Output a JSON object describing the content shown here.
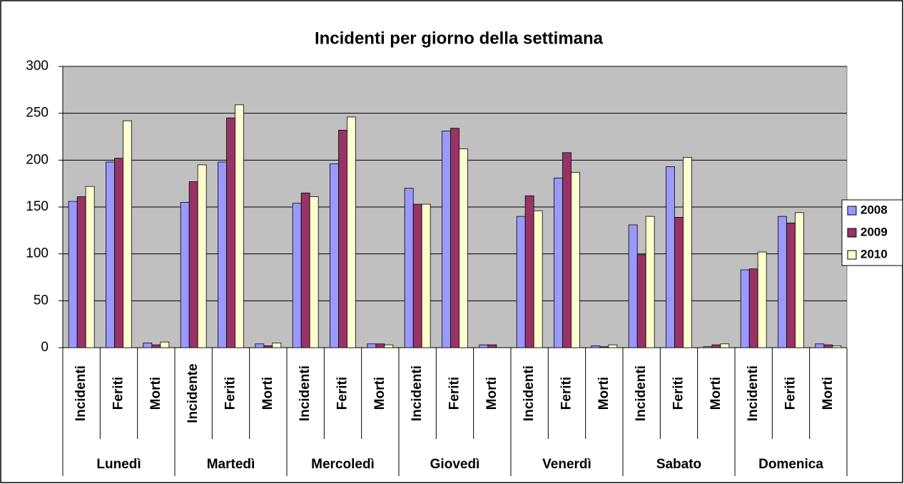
{
  "chart_data": {
    "type": "bar",
    "title": "Incidenti per giorno della settimana",
    "categories": [
      "Incidenti",
      "Feriti",
      "Morti",
      "Incidente",
      "Feriti",
      "Morti",
      "Incidenti",
      "Feriti",
      "Morti",
      "Incidenti",
      "Feriti",
      "Morti",
      "Incidenti",
      "Feriti",
      "Morti",
      "Incidenti",
      "Feriti",
      "Morti",
      "Incidenti",
      "Feriti",
      "Morti"
    ],
    "groups": [
      "Lunedì",
      "Martedì",
      "Mercoledì",
      "Giovedì",
      "Venerdì",
      "Sabato",
      "Domenica"
    ],
    "series": [
      {
        "name": "2008",
        "color": "#9999ff",
        "values": [
          156,
          198,
          5,
          155,
          198,
          4,
          154,
          196,
          4,
          170,
          231,
          3,
          140,
          181,
          2,
          131,
          193,
          1,
          83,
          140,
          4
        ]
      },
      {
        "name": "2009",
        "color": "#993366",
        "values": [
          161,
          202,
          3,
          177,
          245,
          2,
          165,
          232,
          4,
          153,
          234,
          3,
          162,
          208,
          1,
          99,
          139,
          3,
          84,
          133,
          3
        ]
      },
      {
        "name": "2010",
        "color": "#ffffcc",
        "values": [
          172,
          242,
          6,
          195,
          259,
          5,
          161,
          246,
          3,
          153,
          212,
          0,
          146,
          187,
          3,
          140,
          203,
          4,
          102,
          144,
          2
        ]
      }
    ],
    "ylim": [
      0,
      300
    ],
    "yticks": [
      0,
      50,
      100,
      150,
      200,
      250,
      300
    ],
    "grid": true,
    "legend": "right"
  }
}
